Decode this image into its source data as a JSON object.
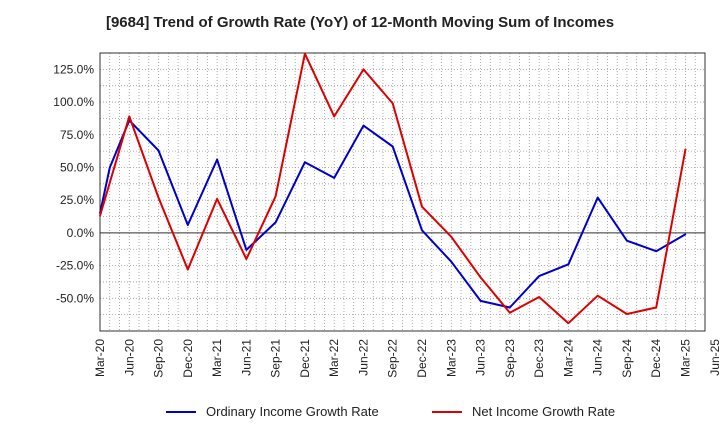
{
  "chart_data": {
    "type": "line",
    "title": "[9684]  Trend of Growth Rate (YoY) of 12-Month Moving Sum of Incomes",
    "xlabel": "",
    "ylabel": "",
    "ylim": [
      -75,
      137.5
    ],
    "x_tick_labels": [
      "Mar-20",
      "Jun-20",
      "Sep-20",
      "Dec-20",
      "Mar-21",
      "Jun-21",
      "Sep-21",
      "Dec-21",
      "Mar-22",
      "Jun-22",
      "Sep-22",
      "Dec-22",
      "Mar-23",
      "Jun-23",
      "Sep-23",
      "Dec-23",
      "Mar-24",
      "Jun-24",
      "Sep-24",
      "Dec-24",
      "Mar-25",
      "Jun-25"
    ],
    "y_ticks": [
      -50,
      -25,
      0,
      25,
      50,
      75,
      100,
      125
    ],
    "y_tick_labels": [
      "-50.0%",
      "-25.0%",
      "0.0%",
      "25.0%",
      "50.0%",
      "75.0%",
      "100.0%",
      "125.0%"
    ],
    "grid": true,
    "legend_position": "bottom",
    "x": [
      "Mar-20",
      "Apr-20",
      "May-20",
      "Jun-20",
      "Jul-20",
      "Aug-20",
      "Sep-20",
      "Oct-20",
      "Nov-20",
      "Dec-20",
      "Jan-21",
      "Feb-21",
      "Mar-21",
      "Apr-21",
      "May-21",
      "Jun-21",
      "Jul-21",
      "Aug-21",
      "Sep-21",
      "Oct-21",
      "Nov-21",
      "Dec-21",
      "Jan-22",
      "Feb-22",
      "Mar-22",
      "Apr-22",
      "May-22",
      "Jun-22",
      "Jul-22",
      "Aug-22",
      "Sep-22",
      "Oct-22",
      "Nov-22",
      "Dec-22",
      "Jan-23",
      "Feb-23",
      "Mar-23",
      "Apr-23",
      "May-23",
      "Jun-23",
      "Jul-23",
      "Aug-23",
      "Sep-23",
      "Oct-23",
      "Nov-23",
      "Dec-23",
      "Jan-24",
      "Feb-24",
      "Mar-24",
      "Apr-24",
      "May-24",
      "Jun-24",
      "Jul-24",
      "Aug-24",
      "Sep-24",
      "Oct-24",
      "Nov-24",
      "Dec-24",
      "Jan-25",
      "Feb-25",
      "Mar-25"
    ],
    "series": [
      {
        "name": "Ordinary Income Growth Rate",
        "color": "#0000cc",
        "values": [
          15,
          50,
          null,
          86,
          null,
          null,
          63,
          null,
          null,
          6,
          null,
          null,
          56,
          null,
          null,
          -13,
          null,
          null,
          8,
          null,
          null,
          54,
          null,
          null,
          42,
          null,
          null,
          82,
          null,
          null,
          66,
          null,
          null,
          2,
          null,
          null,
          -22,
          null,
          null,
          -52,
          null,
          null,
          -57,
          null,
          null,
          -33,
          null,
          null,
          -24,
          null,
          null,
          27,
          null,
          null,
          -6,
          null,
          null,
          -14,
          null,
          null,
          -1
        ]
      },
      {
        "name": "Net Income Growth Rate",
        "color": "#dd0000",
        "values": [
          13,
          null,
          null,
          89,
          null,
          null,
          27,
          null,
          null,
          -28,
          null,
          null,
          26,
          null,
          null,
          -20,
          null,
          null,
          28,
          null,
          null,
          137,
          null,
          null,
          89,
          null,
          null,
          125,
          null,
          null,
          99,
          null,
          null,
          20,
          null,
          null,
          -3,
          null,
          null,
          -34,
          null,
          null,
          -61,
          null,
          null,
          -49,
          null,
          null,
          -69,
          null,
          null,
          -48,
          null,
          null,
          -62,
          null,
          null,
          -57,
          null,
          null,
          64
        ]
      }
    ]
  }
}
